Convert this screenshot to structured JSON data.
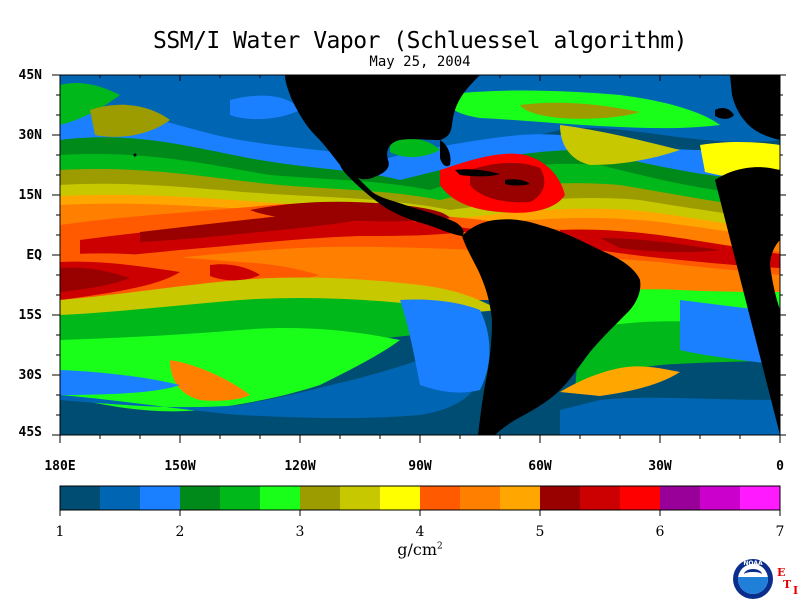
{
  "map": {
    "title": "SSM/I Water Vapor (Schluessel algorithm)",
    "date": "May 25, 2004",
    "lat_labels": [
      "45N",
      "30N",
      "15N",
      "EQ",
      "15S",
      "30S",
      "45S"
    ],
    "lon_labels": [
      "180E",
      "150W",
      "120W",
      "90W",
      "60W",
      "30W",
      "0"
    ],
    "colorbar": {
      "ticks": [
        "1",
        "2",
        "3",
        "4",
        "5",
        "6",
        "7"
      ],
      "unit": "g/cm",
      "unit_exp": "2",
      "colors": [
        "#004d73",
        "#0066b3",
        "#1a80ff",
        "#008a1a",
        "#00b81a",
        "#1aff1a",
        "#9c9c00",
        "#c8c800",
        "#ffff00",
        "#ff5a00",
        "#ff8000",
        "#ffa600",
        "#990000",
        "#cc0000",
        "#ff0000",
        "#990099",
        "#cc00cc",
        "#ff1aff"
      ]
    },
    "land_color": "#000000",
    "logo": {
      "text": "NOAA"
    },
    "credit": {
      "e": "E",
      "t": "T",
      "i": "I"
    }
  }
}
